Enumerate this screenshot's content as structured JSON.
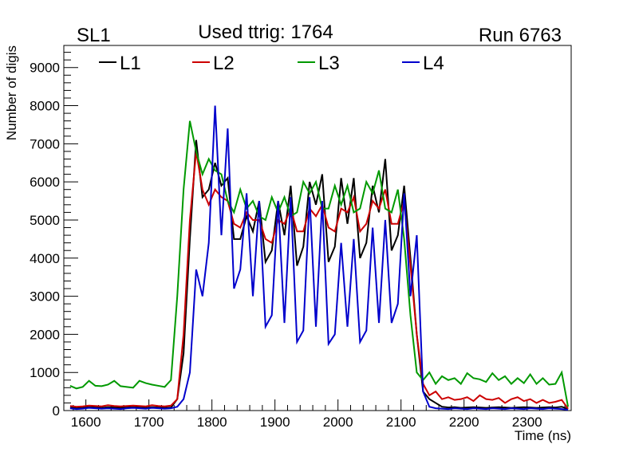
{
  "chart_data": {
    "type": "line",
    "title": "Used ttrig: 1764",
    "left_label": "SL1",
    "right_label": "Run 6763",
    "xlabel": "Time (ns)",
    "ylabel": "Number of digis",
    "xlim": [
      1565,
      2370
    ],
    "ylim": [
      0,
      9580
    ],
    "xticks": [
      1600,
      1700,
      1800,
      1900,
      2000,
      2100,
      2200,
      2300
    ],
    "yticks": [
      0,
      1000,
      2000,
      3000,
      4000,
      5000,
      6000,
      7000,
      8000,
      9000
    ],
    "grid": false,
    "legend_position": "top",
    "x_start": 1570,
    "bin_width": 10,
    "series": [
      {
        "name": "L1",
        "color": "#000000",
        "values": [
          80,
          60,
          70,
          90,
          80,
          70,
          90,
          80,
          70,
          80,
          90,
          80,
          70,
          90,
          80,
          70,
          80,
          300,
          1500,
          4500,
          7100,
          5600,
          5800,
          6500,
          5900,
          6100,
          4500,
          4500,
          5100,
          4700,
          5500,
          3900,
          4200,
          5500,
          4600,
          5900,
          3800,
          4300,
          6000,
          5400,
          6200,
          3900,
          4300,
          6100,
          4900,
          6100,
          4000,
          4400,
          5900,
          5200,
          6600,
          4200,
          4600,
          5900,
          4000,
          2000,
          500,
          300,
          200,
          100,
          80,
          90,
          70,
          80,
          90,
          80,
          70,
          80,
          90,
          80,
          70,
          80,
          90,
          80,
          70,
          80,
          90,
          80,
          100,
          40
        ]
      },
      {
        "name": "L2",
        "color": "#cc0000",
        "values": [
          120,
          100,
          110,
          130,
          120,
          110,
          140,
          120,
          110,
          120,
          130,
          120,
          110,
          140,
          120,
          110,
          130,
          300,
          2000,
          5000,
          6800,
          5800,
          5400,
          5800,
          5600,
          5500,
          4900,
          4800,
          5200,
          5000,
          5000,
          4500,
          4400,
          5000,
          4900,
          5300,
          4700,
          4700,
          5300,
          5100,
          5400,
          4800,
          4700,
          5300,
          5200,
          5600,
          4700,
          4900,
          5500,
          5300,
          5800,
          4900,
          4900,
          5500,
          3800,
          2000,
          700,
          400,
          500,
          300,
          350,
          280,
          300,
          350,
          250,
          400,
          300,
          280,
          330,
          200,
          300,
          350,
          250,
          300,
          200,
          280,
          200,
          230,
          280,
          50
        ]
      },
      {
        "name": "L3",
        "color": "#009900",
        "values": [
          650,
          580,
          620,
          780,
          650,
          640,
          680,
          780,
          640,
          620,
          600,
          780,
          720,
          680,
          650,
          620,
          800,
          3000,
          5800,
          7600,
          6800,
          6200,
          6600,
          6300,
          6200,
          5500,
          5200,
          5800,
          5300,
          5500,
          5100,
          5000,
          5600,
          5200,
          5600,
          5100,
          5200,
          6000,
          5700,
          6000,
          5300,
          5300,
          5900,
          5400,
          5900,
          5200,
          5300,
          6000,
          5700,
          6300,
          5300,
          5200,
          5800,
          4500,
          2500,
          1000,
          800,
          1000,
          700,
          900,
          800,
          850,
          700,
          980,
          850,
          820,
          750,
          980,
          800,
          900,
          700,
          850,
          720,
          950,
          700,
          850,
          680,
          700,
          1000,
          100
        ]
      },
      {
        "name": "L4",
        "color": "#0000cc",
        "values": [
          60,
          40,
          50,
          70,
          60,
          50,
          60,
          50,
          40,
          60,
          70,
          60,
          50,
          70,
          60,
          50,
          60,
          100,
          300,
          1000,
          3700,
          3000,
          4400,
          8000,
          4600,
          7400,
          3200,
          3700,
          5700,
          3000,
          5500,
          2200,
          2500,
          5500,
          2300,
          5600,
          1800,
          2100,
          5600,
          2200,
          5500,
          1750,
          2000,
          4400,
          2200,
          4500,
          1800,
          2100,
          4800,
          2300,
          5000,
          2300,
          2800,
          5700,
          3000,
          4600,
          500,
          100,
          60,
          50,
          40,
          60,
          50,
          40,
          60,
          50,
          40,
          60,
          50,
          40,
          60,
          50,
          40,
          60,
          50,
          40,
          60,
          50,
          40,
          20
        ]
      }
    ]
  }
}
